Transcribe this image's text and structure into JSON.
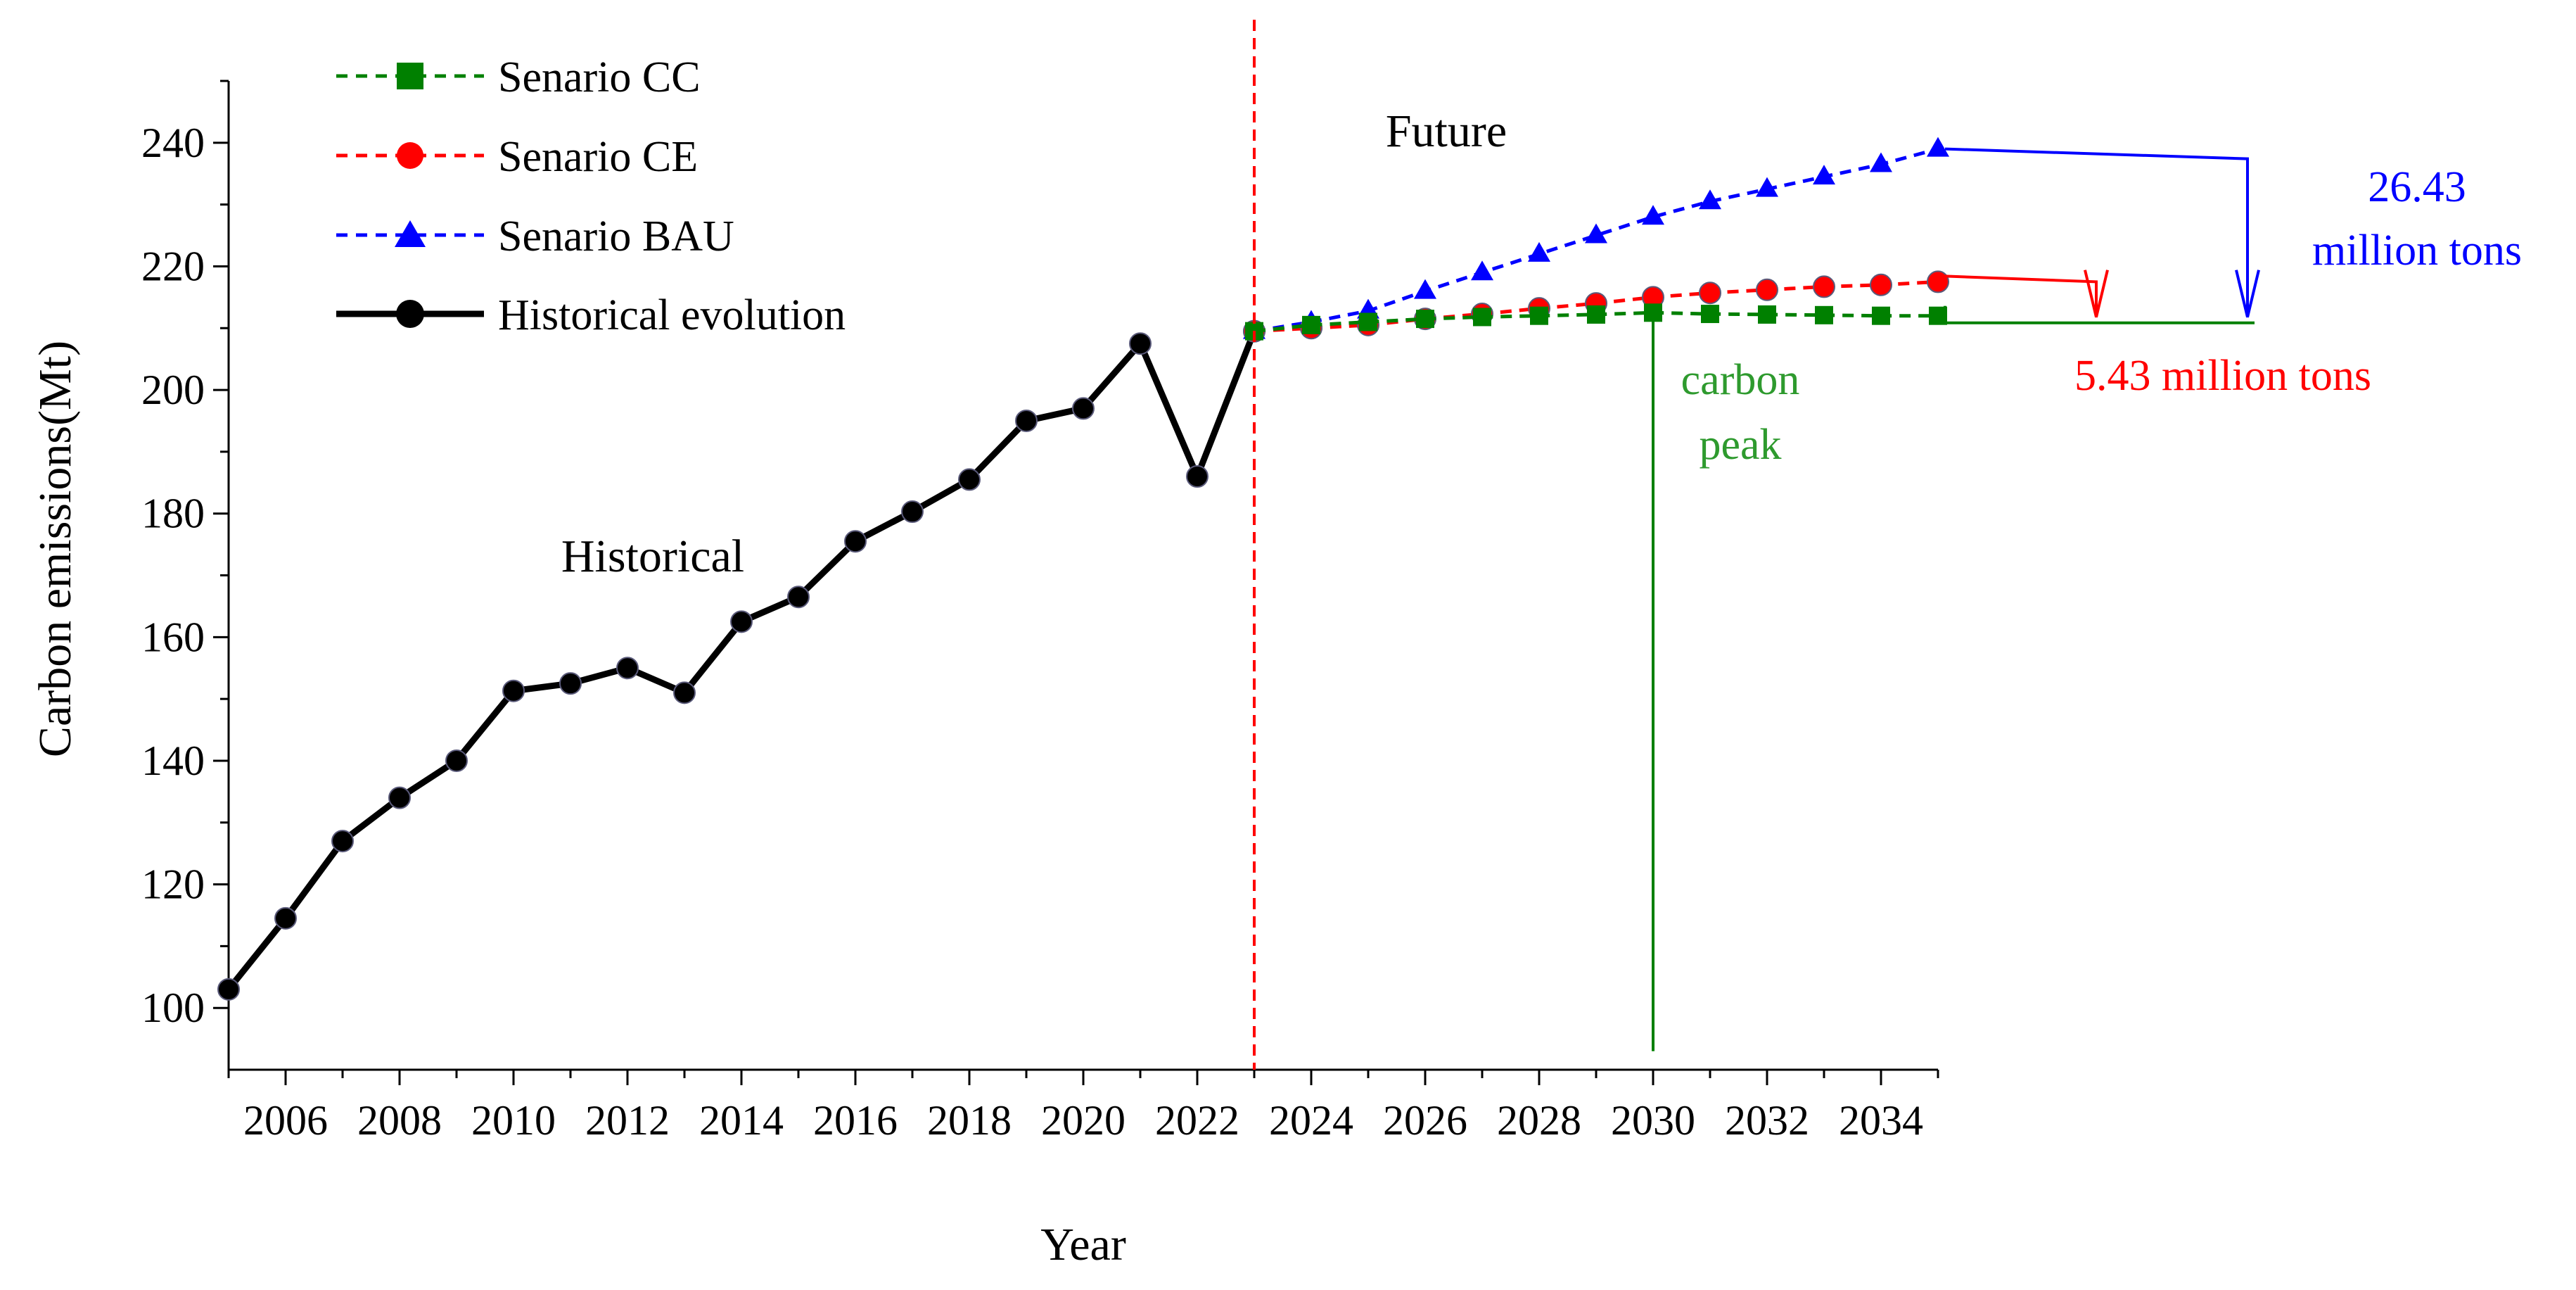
{
  "chart_data": {
    "type": "line",
    "title": "",
    "xlabel": "Year",
    "ylabel": "Carbon emissions(Mt)",
    "xlim": [
      2005,
      2035
    ],
    "ylim": [
      90,
      250
    ],
    "x_ticks": [
      2006,
      2008,
      2010,
      2012,
      2014,
      2016,
      2018,
      2020,
      2022,
      2024,
      2026,
      2028,
      2030,
      2032,
      2034
    ],
    "y_ticks": [
      100,
      120,
      140,
      160,
      180,
      200,
      220,
      240
    ],
    "grid": false,
    "legend_position": "top-left",
    "series": [
      {
        "name": "Senario CC",
        "color": "#008000",
        "line_style": "dashed",
        "marker": "square",
        "x": [
          2023,
          2024,
          2025,
          2026,
          2027,
          2028,
          2029,
          2030,
          2031,
          2032,
          2033,
          2034,
          2035
        ],
        "values": [
          209.5,
          210.5,
          211.0,
          211.5,
          211.8,
          212.0,
          212.2,
          212.5,
          212.3,
          212.2,
          212.1,
          212.0,
          212.0
        ]
      },
      {
        "name": "Senario CE",
        "color": "#ff0000",
        "line_style": "dashed",
        "marker": "circle",
        "x": [
          2023,
          2024,
          2025,
          2026,
          2027,
          2028,
          2029,
          2030,
          2031,
          2032,
          2033,
          2034,
          2035
        ],
        "values": [
          209.5,
          210.0,
          210.5,
          211.5,
          212.3,
          213.2,
          214.0,
          215.0,
          215.7,
          216.2,
          216.7,
          217.0,
          217.5
        ]
      },
      {
        "name": "Senario BAU",
        "color": "#0000ff",
        "line_style": "dashed",
        "marker": "triangle",
        "x": [
          2023,
          2024,
          2025,
          2026,
          2027,
          2028,
          2029,
          2030,
          2031,
          2032,
          2033,
          2034,
          2035
        ],
        "values": [
          209.5,
          211.0,
          212.8,
          216.0,
          219.0,
          222.0,
          225.0,
          228.0,
          230.5,
          232.5,
          234.5,
          236.5,
          239.0
        ]
      },
      {
        "name": "Historical evolution",
        "color": "#000000",
        "line_style": "solid",
        "marker": "circle",
        "x": [
          2005,
          2006,
          2007,
          2008,
          2009,
          2010,
          2011,
          2012,
          2013,
          2014,
          2015,
          2016,
          2017,
          2018,
          2019,
          2020,
          2021,
          2022,
          2023
        ],
        "values": [
          103,
          114.5,
          127,
          134,
          140,
          151.3,
          152.5,
          155,
          151,
          162.5,
          166.5,
          175.5,
          180.3,
          185.5,
          195,
          197,
          207.5,
          186,
          209.5
        ]
      }
    ],
    "annotations": {
      "historical_label": "Historical",
      "future_label": "Future",
      "divider_year": 2023,
      "bau_gap": {
        "line1": "26.43",
        "line2": "million tons",
        "color": "#0000ff"
      },
      "ce_gap": {
        "text": "5.43 million tons",
        "color": "#ff0000"
      },
      "peak": {
        "line1": "carbon",
        "line2": "peak",
        "year": 2030,
        "color": "#008000"
      }
    }
  }
}
